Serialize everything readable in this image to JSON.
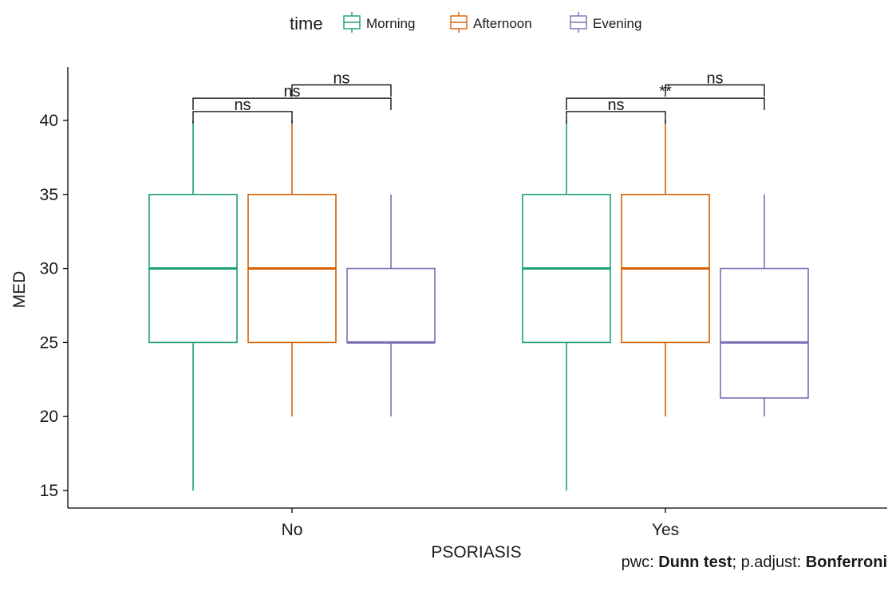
{
  "chart_data": {
    "type": "boxplot",
    "xlabel": "PSORIASIS",
    "ylabel": "MED",
    "ylim": [
      14,
      44
    ],
    "yticks": [
      15,
      20,
      25,
      30,
      35,
      40
    ],
    "categories": [
      "No",
      "Yes"
    ],
    "legend": {
      "title": "time",
      "position": "top"
    },
    "series": [
      {
        "name": "Morning",
        "color": "#1b9e77",
        "boxes": [
          {
            "category": "No",
            "min": 15,
            "q1": 25,
            "median": 30,
            "q3": 35,
            "max": 40
          },
          {
            "category": "Yes",
            "min": 15,
            "q1": 25,
            "median": 30,
            "q3": 35,
            "max": 40
          }
        ]
      },
      {
        "name": "Afternoon",
        "color": "#d95f02",
        "boxes": [
          {
            "category": "No",
            "min": 20,
            "q1": 25,
            "median": 30,
            "q3": 35,
            "max": 40
          },
          {
            "category": "Yes",
            "min": 20,
            "q1": 25,
            "median": 30,
            "q3": 35,
            "max": 40
          }
        ]
      },
      {
        "name": "Evening",
        "color": "#7570b3",
        "boxes": [
          {
            "category": "No",
            "min": 20,
            "q1": 25,
            "median": 25,
            "q3": 30,
            "max": 35
          },
          {
            "category": "Yes",
            "min": 20,
            "q1": 21.25,
            "median": 25,
            "q3": 30,
            "max": 35
          }
        ]
      }
    ],
    "comparisons": [
      {
        "category": "No",
        "group1": "Morning",
        "group2": "Afternoon",
        "label": "ns",
        "y": 40.6
      },
      {
        "category": "No",
        "group1": "Morning",
        "group2": "Evening",
        "label": "ns",
        "y": 41.5
      },
      {
        "category": "No",
        "group1": "Afternoon",
        "group2": "Evening",
        "label": "ns",
        "y": 42.4
      },
      {
        "category": "Yes",
        "group1": "Morning",
        "group2": "Afternoon",
        "label": "ns",
        "y": 40.6
      },
      {
        "category": "Yes",
        "group1": "Morning",
        "group2": "Evening",
        "label": "**",
        "y": 41.5
      },
      {
        "category": "Yes",
        "group1": "Afternoon",
        "group2": "Evening",
        "label": "ns",
        "y": 42.4
      }
    ]
  },
  "caption": {
    "prefix": "pwc: ",
    "test": "Dunn test",
    "middle": "; p.adjust: ",
    "method": "Bonferroni"
  }
}
